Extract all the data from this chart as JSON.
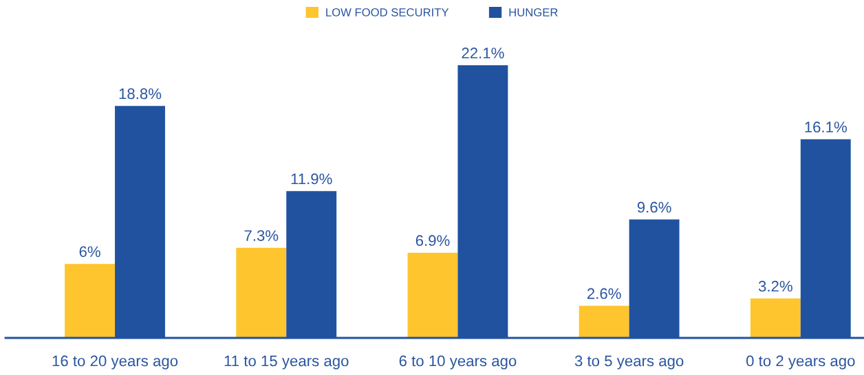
{
  "chart_data": {
    "type": "bar",
    "categories": [
      "16 to 20 years ago",
      "11 to 15 years ago",
      "6 to 10 years ago",
      "3 to 5 years ago",
      "0 to 2 years ago"
    ],
    "series": [
      {
        "name": "LOW FOOD SECURITY",
        "color": "#fec52e",
        "values": [
          6,
          7.3,
          6.9,
          2.6,
          3.2
        ],
        "value_labels": [
          "6%",
          "7.3%",
          "6.9%",
          "2.6%",
          "3.2%"
        ]
      },
      {
        "name": "HUNGER",
        "color": "#2152a0",
        "values": [
          18.8,
          11.9,
          22.1,
          9.6,
          16.1
        ],
        "value_labels": [
          "18.8%",
          "11.9%",
          "22.1%",
          "9.6%",
          "16.1%"
        ]
      }
    ],
    "legend": "top",
    "grid": false,
    "tick_labels": "x"
  }
}
